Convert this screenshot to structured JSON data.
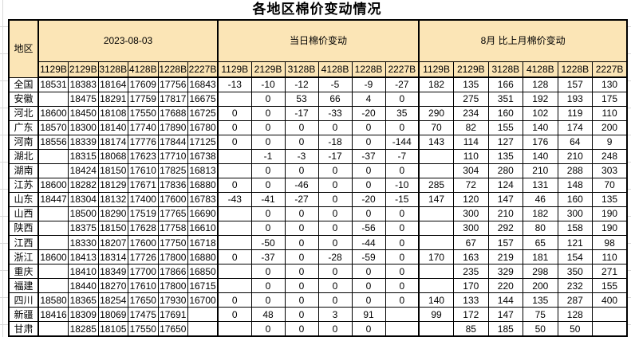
{
  "title": "各地区棉价变动情况",
  "colors": {
    "header_bg": "#fbe5b6",
    "positive": "#ff0000",
    "negative": "#0070c0",
    "border": "#000000",
    "gridline": "#d9d9d9"
  },
  "table": {
    "region_header": "地区",
    "groups": [
      {
        "label": "2023-08-03",
        "subcols": [
          "1129B",
          "2129B",
          "3128B",
          "4128B",
          "1228B",
          "2227B"
        ]
      },
      {
        "label": "当日棉价变动",
        "subcols": [
          "1129B",
          "2129B",
          "3128B",
          "4128B",
          "1228B",
          "2227B"
        ]
      },
      {
        "label": "8月 比上月棉价变动",
        "subcols": [
          "1129B",
          "2129B",
          "3128B",
          "4128B",
          "1228B",
          "2227B"
        ]
      }
    ],
    "rows": [
      {
        "region": "全国",
        "prices": [
          "18531",
          "18383",
          "18164",
          "17609",
          "17756",
          "16843"
        ],
        "daily_change": [
          "-13",
          "-10",
          "-12",
          "-5",
          "-9",
          "-27"
        ],
        "monthly_change": [
          "182",
          "135",
          "166",
          "128",
          "157",
          "130"
        ]
      },
      {
        "region": "安徽",
        "prices": [
          "",
          "18475",
          "18291",
          "17759",
          "17817",
          "16675"
        ],
        "daily_change": [
          "",
          "0",
          "53",
          "66",
          "4",
          "0"
        ],
        "monthly_change": [
          "",
          "275",
          "351",
          "192",
          "193",
          "175"
        ]
      },
      {
        "region": "河北",
        "prices": [
          "18600",
          "18450",
          "18108",
          "17550",
          "17688",
          "16725"
        ],
        "daily_change": [
          "0",
          "0",
          "-17",
          "-33",
          "-20",
          "35"
        ],
        "monthly_change": [
          "290",
          "234",
          "160",
          "102",
          "119",
          "110"
        ]
      },
      {
        "region": "广东",
        "prices": [
          "18570",
          "18300",
          "18140",
          "17740",
          "17890",
          "16780"
        ],
        "daily_change": [
          "0",
          "0",
          "0",
          "0",
          "0",
          "0"
        ],
        "monthly_change": [
          "70",
          "82",
          "155",
          "140",
          "174",
          "200"
        ]
      },
      {
        "region": "河南",
        "prices": [
          "18556",
          "18339",
          "18174",
          "17776",
          "17844",
          "17125"
        ],
        "daily_change": [
          "0",
          "0",
          "0",
          "-18",
          "0",
          "-144"
        ],
        "monthly_change": [
          "143",
          "114",
          "127",
          "176",
          "64",
          "9"
        ]
      },
      {
        "region": "湖北",
        "prices": [
          "",
          "18315",
          "18068",
          "17623",
          "17710",
          "16738"
        ],
        "daily_change": [
          "",
          "-1",
          "-3",
          "-17",
          "-37",
          "-7"
        ],
        "monthly_change": [
          "",
          "110",
          "135",
          "140",
          "210",
          "248"
        ]
      },
      {
        "region": "湖南",
        "prices": [
          "",
          "18424",
          "18150",
          "17610",
          "17825",
          "16813"
        ],
        "daily_change": [
          "",
          "0",
          "0",
          "0",
          "0",
          "0"
        ],
        "monthly_change": [
          "",
          "304",
          "280",
          "210",
          "288",
          "303"
        ]
      },
      {
        "region": "江苏",
        "prices": [
          "18600",
          "18282",
          "18129",
          "17671",
          "17836",
          "16880"
        ],
        "daily_change": [
          "0",
          "0",
          "-46",
          "0",
          "0",
          "-10"
        ],
        "monthly_change": [
          "285",
          "72",
          "124",
          "131",
          "148",
          "70"
        ]
      },
      {
        "region": "山东",
        "prices": [
          "18447",
          "18304",
          "18132",
          "17400",
          "17600",
          "16783"
        ],
        "daily_change": [
          "-43",
          "-41",
          "-27",
          "0",
          "-20",
          "-15"
        ],
        "monthly_change": [
          "147",
          "120",
          "147",
          "46",
          "160",
          "135"
        ]
      },
      {
        "region": "山西",
        "prices": [
          "",
          "18500",
          "18290",
          "17519",
          "17765",
          "16690"
        ],
        "daily_change": [
          "",
          "0",
          "0",
          "0",
          "0",
          "0"
        ],
        "monthly_change": [
          "",
          "300",
          "210",
          "182",
          "300",
          "190"
        ]
      },
      {
        "region": "陕西",
        "prices": [
          "",
          "18375",
          "18150",
          "17628",
          "17758",
          "16610"
        ],
        "daily_change": [
          "",
          "0",
          "0",
          "0",
          "-56",
          "0"
        ],
        "monthly_change": [
          "",
          "300",
          "292",
          "80",
          "158",
          "190"
        ]
      },
      {
        "region": "江西",
        "prices": [
          "",
          "18330",
          "18207",
          "17600",
          "17750",
          "16718"
        ],
        "daily_change": [
          "",
          "-50",
          "0",
          "0",
          "-44",
          "0"
        ],
        "monthly_change": [
          "",
          "67",
          "157",
          "65",
          "121",
          "98"
        ]
      },
      {
        "region": "浙江",
        "prices": [
          "18600",
          "18413",
          "18314",
          "17726",
          "17800",
          "16880"
        ],
        "daily_change": [
          "0",
          "-37",
          "0",
          "-28",
          "-59",
          "0"
        ],
        "monthly_change": [
          "170",
          "163",
          "219",
          "181",
          "154",
          "110"
        ]
      },
      {
        "region": "重庆",
        "prices": [
          "",
          "18410",
          "18349",
          "17700",
          "17866",
          "16850"
        ],
        "daily_change": [
          "",
          "0",
          "0",
          "0",
          "0",
          "0"
        ],
        "monthly_change": [
          "",
          "235",
          "329",
          "298",
          "350",
          "271"
        ]
      },
      {
        "region": "福建",
        "prices": [
          "",
          "18440",
          "18270",
          "17610",
          "17800",
          "16715"
        ],
        "daily_change": [
          "",
          "0",
          "0",
          "0",
          "0",
          "0"
        ],
        "monthly_change": [
          "",
          "170",
          "220",
          "200",
          "232",
          "155"
        ]
      },
      {
        "region": "四川",
        "prices": [
          "18580",
          "18365",
          "18254",
          "17650",
          "17930",
          "16700"
        ],
        "daily_change": [
          "0",
          "0",
          "0",
          "0",
          "0",
          "0"
        ],
        "monthly_change": [
          "140",
          "133",
          "144",
          "135",
          "287",
          "400"
        ]
      },
      {
        "region": "新疆",
        "prices": [
          "18416",
          "18309",
          "18069",
          "17475",
          "17691",
          ""
        ],
        "daily_change": [
          "0",
          "48",
          "0",
          "3",
          "91",
          ""
        ],
        "monthly_change": [
          "99",
          "172",
          "147",
          "75",
          "128",
          ""
        ]
      },
      {
        "region": "甘肃",
        "prices": [
          "",
          "18285",
          "18105",
          "17550",
          "17650",
          ""
        ],
        "daily_change": [
          "",
          "0",
          "0",
          "0",
          "0",
          ""
        ],
        "monthly_change": [
          "",
          "85",
          "185",
          "50",
          "50",
          ""
        ]
      }
    ]
  }
}
